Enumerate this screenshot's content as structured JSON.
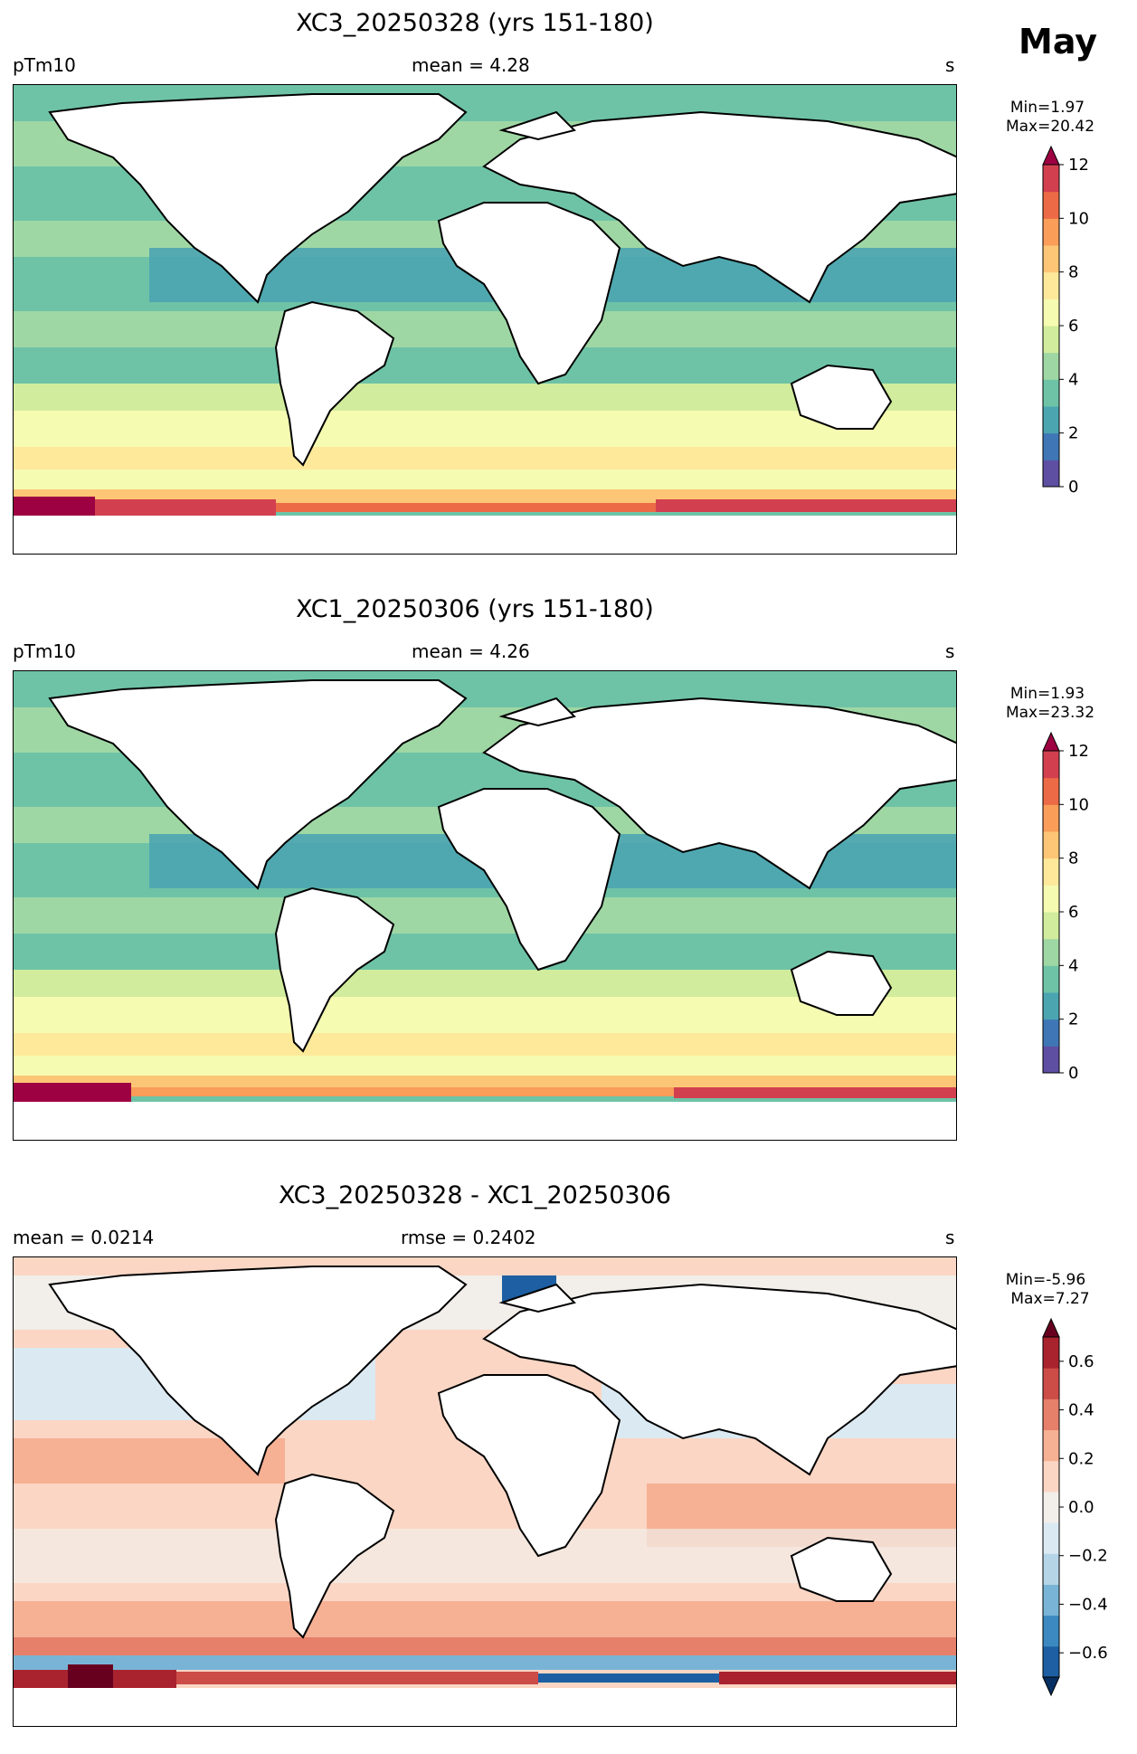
{
  "month": "May",
  "panels": [
    {
      "title": "XC3_20250328 (yrs 151-180)",
      "left_label": "pTm10",
      "center_label": "mean = 4.28",
      "units": "s",
      "min_label": "Min=1.97",
      "max_label": "Max=20.42",
      "colorbar": {
        "ticks": [
          "0",
          "2",
          "4",
          "6",
          "8",
          "10",
          "12"
        ],
        "levels": [
          "#5e4fa2",
          "#3f77b6",
          "#4ba5b1",
          "#6ec3a6",
          "#9fd7a4",
          "#d0ec9c",
          "#f5fbb1",
          "#fee99a",
          "#fdc676",
          "#f99d59",
          "#ec6a45",
          "#d2404f",
          "#9e0142"
        ],
        "extend": "max"
      }
    },
    {
      "title": "XC1_20250306 (yrs 151-180)",
      "left_label": "pTm10",
      "center_label": "mean = 4.26",
      "units": "s",
      "min_label": "Min=1.93",
      "max_label": "Max=23.32",
      "colorbar": {
        "ticks": [
          "0",
          "2",
          "4",
          "6",
          "8",
          "10",
          "12"
        ],
        "levels": [
          "#5e4fa2",
          "#3f77b6",
          "#4ba5b1",
          "#6ec3a6",
          "#9fd7a4",
          "#d0ec9c",
          "#f5fbb1",
          "#fee99a",
          "#fdc676",
          "#f99d59",
          "#ec6a45",
          "#d2404f",
          "#9e0142"
        ],
        "extend": "max"
      }
    },
    {
      "title": "XC3_20250328 - XC1_20250306",
      "left_label": "mean = 0.0214",
      "center_label": "rmse = 0.2402",
      "units": "s",
      "min_label": "Min=-5.96",
      "max_label": "Max=7.27",
      "colorbar": {
        "ticks": [
          "−0.6",
          "−0.4",
          "−0.2",
          "0.0",
          "0.2",
          "0.4",
          "0.6"
        ],
        "levels": [
          "#053061",
          "#1d5fa2",
          "#3b89c0",
          "#79b4d6",
          "#b5d5e7",
          "#dbe9f2",
          "#f2eeea",
          "#fbd6c4",
          "#f6b094",
          "#e6806a",
          "#cc4c48",
          "#a9232f",
          "#67001f"
        ],
        "extend": "both"
      }
    }
  ]
}
